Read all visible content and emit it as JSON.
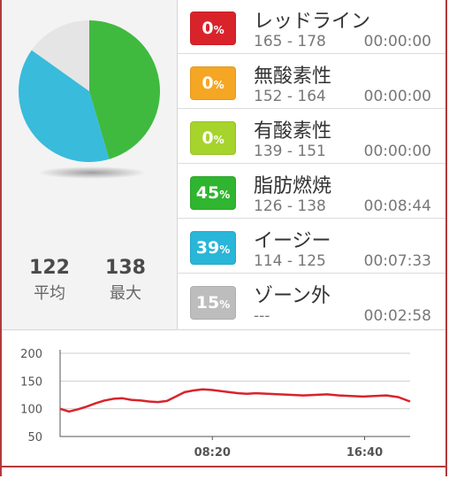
{
  "pie": {
    "segments": [
      {
        "name": "fat-burn",
        "percent": 45,
        "color": "#2fb52f"
      },
      {
        "name": "easy",
        "percent": 39,
        "color": "#29b6d8"
      },
      {
        "name": "out-of-zone",
        "percent": 15,
        "color": "#e3e3e3"
      }
    ]
  },
  "stats": {
    "avg_value": "122",
    "avg_label": "平均",
    "max_value": "138",
    "max_label": "最大"
  },
  "zones": [
    {
      "name": "レッドライン",
      "range": "165 - 178",
      "time": "00:00:00",
      "value": "0",
      "unit": "%",
      "color": "#d9232b"
    },
    {
      "name": "無酸素性",
      "range": "152 - 164",
      "time": "00:00:00",
      "value": "0",
      "unit": "%",
      "color": "#f5a623"
    },
    {
      "name": "有酸素性",
      "range": "139 - 151",
      "time": "00:00:00",
      "value": "0",
      "unit": "%",
      "color": "#a6d32c"
    },
    {
      "name": "脂肪燃焼",
      "range": "126 - 138",
      "time": "00:08:44",
      "value": "45",
      "unit": "%",
      "color": "#2fb52f"
    },
    {
      "name": "イージー",
      "range": "114 - 125",
      "time": "00:07:33",
      "value": "39",
      "unit": "%",
      "color": "#29b6d8"
    },
    {
      "name": "ゾーン外",
      "range": "---",
      "time": "00:02:58",
      "value": "15",
      "unit": "%",
      "color": "#bdbdbd"
    }
  ],
  "chart_data": {
    "type": "line",
    "y_ticks": [
      "200",
      "150",
      "100",
      "50"
    ],
    "x_ticks": [
      "08:20",
      "16:40"
    ],
    "ylim": [
      50,
      200
    ],
    "line_color": "#d9232b",
    "series": [
      {
        "x": [
          0,
          30,
          60,
          90,
          120,
          150,
          180,
          210,
          240,
          270,
          300,
          330,
          360,
          390,
          420,
          450,
          480,
          510,
          540,
          570,
          600,
          630,
          660,
          700,
          740,
          780,
          820,
          860,
          900,
          940,
          980,
          1020,
          1060,
          1100,
          1140,
          1180
        ],
        "values": [
          100,
          95,
          99,
          104,
          110,
          115,
          118,
          119,
          116,
          115,
          113,
          112,
          114,
          122,
          130,
          133,
          135,
          134,
          132,
          130,
          128,
          127,
          128,
          127,
          126,
          125,
          124,
          125,
          126,
          124,
          123,
          122,
          123,
          124,
          121,
          113
        ]
      }
    ]
  }
}
